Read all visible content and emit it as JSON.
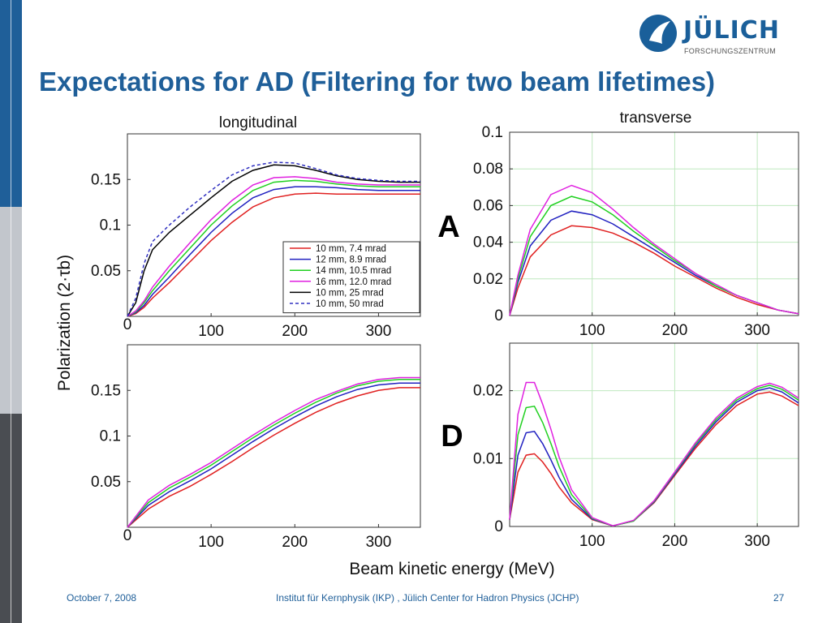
{
  "slide": {
    "title": "Expectations for AD (Filtering for two beam lifetimes)",
    "logo_word": "JÜLICH",
    "logo_sub": "FORSCHUNGSZENTRUM",
    "footer_date": "October 7, 2008",
    "footer_institute": "Institut für Kernphysik (IKP) , Jülich Center for Hadron Physics (JCHP)",
    "page_number": "27",
    "colors": {
      "title": "#1f5f99",
      "brand": "#1a5f9a",
      "grid": "#bfe8bf"
    }
  },
  "labels": {
    "col_longitudinal": "longitudinal",
    "col_transverse": "transverse",
    "row_A": "A",
    "row_D": "D",
    "ylabel_shared": "Polarization (2·τb)",
    "xlabel_shared": "Beam kinetic energy (MeV)"
  },
  "chart_data": [
    {
      "id": "A-longitudinal",
      "type": "line",
      "ylim": [
        0,
        0.2
      ],
      "xlim": [
        0,
        350
      ],
      "xticks": [
        100,
        200,
        300
      ],
      "yticks": [
        0.05,
        0.1,
        0.15
      ],
      "origin_label": "0",
      "grid": false,
      "legend_position": "bottom-right",
      "x": [
        0,
        10,
        20,
        30,
        50,
        75,
        100,
        125,
        150,
        175,
        200,
        225,
        250,
        275,
        300,
        325,
        350
      ],
      "series": [
        {
          "name": "10 mm, 7.4 mrad",
          "color": "#e02020",
          "values": [
            0,
            0.003,
            0.01,
            0.02,
            0.037,
            0.06,
            0.083,
            0.103,
            0.12,
            0.13,
            0.134,
            0.135,
            0.134,
            0.134,
            0.134,
            0.134,
            0.134
          ]
        },
        {
          "name": "12 mm, 8.9 mrad",
          "color": "#2020c0",
          "values": [
            0,
            0.004,
            0.012,
            0.024,
            0.043,
            0.068,
            0.092,
            0.113,
            0.13,
            0.139,
            0.142,
            0.142,
            0.141,
            0.139,
            0.138,
            0.138,
            0.138
          ]
        },
        {
          "name": "14 mm, 10.5 mrad",
          "color": "#20d020",
          "values": [
            0,
            0.005,
            0.015,
            0.028,
            0.05,
            0.075,
            0.1,
            0.121,
            0.138,
            0.147,
            0.149,
            0.148,
            0.145,
            0.143,
            0.142,
            0.142,
            0.142
          ]
        },
        {
          "name": "16 mm, 12.0 mrad",
          "color": "#e020e0",
          "values": [
            0,
            0.006,
            0.017,
            0.032,
            0.055,
            0.081,
            0.106,
            0.127,
            0.144,
            0.152,
            0.153,
            0.151,
            0.147,
            0.145,
            0.144,
            0.144,
            0.144
          ]
        },
        {
          "name": "10 mm, 25 mrad",
          "color": "#000000",
          "values": [
            0,
            0.015,
            0.05,
            0.073,
            0.092,
            0.111,
            0.13,
            0.148,
            0.16,
            0.166,
            0.165,
            0.16,
            0.154,
            0.15,
            0.148,
            0.147,
            0.147
          ]
        },
        {
          "name": "10 mm, 50 mrad",
          "color": "#3030c0",
          "dash": true,
          "values": [
            0,
            0.02,
            0.058,
            0.082,
            0.1,
            0.12,
            0.138,
            0.155,
            0.165,
            0.169,
            0.168,
            0.162,
            0.155,
            0.151,
            0.149,
            0.148,
            0.148
          ]
        }
      ]
    },
    {
      "id": "A-transverse",
      "type": "line",
      "ylim": [
        0,
        0.1
      ],
      "xlim": [
        0,
        350
      ],
      "xticks": [
        100,
        200,
        300
      ],
      "yticks": [
        0,
        0.02,
        0.04,
        0.06,
        0.08,
        0.1
      ],
      "grid": true,
      "x": [
        0,
        10,
        25,
        50,
        75,
        100,
        125,
        150,
        175,
        200,
        225,
        250,
        275,
        300,
        325,
        350
      ],
      "series": [
        {
          "name": "10 mm, 7.4 mrad",
          "color": "#e02020",
          "values": [
            0,
            0.015,
            0.032,
            0.044,
            0.049,
            0.048,
            0.045,
            0.04,
            0.034,
            0.027,
            0.021,
            0.015,
            0.01,
            0.006,
            0.003,
            0.001
          ]
        },
        {
          "name": "12 mm, 8.9 mrad",
          "color": "#2020c0",
          "values": [
            0,
            0.018,
            0.038,
            0.052,
            0.057,
            0.055,
            0.05,
            0.043,
            0.036,
            0.029,
            0.022,
            0.016,
            0.011,
            0.007,
            0.003,
            0.001
          ]
        },
        {
          "name": "14 mm, 10.5 mrad",
          "color": "#20d020",
          "values": [
            0,
            0.02,
            0.043,
            0.06,
            0.065,
            0.062,
            0.055,
            0.046,
            0.038,
            0.03,
            0.023,
            0.016,
            0.011,
            0.007,
            0.003,
            0.001
          ]
        },
        {
          "name": "16 mm, 12.0 mrad",
          "color": "#e020e0",
          "values": [
            0,
            0.022,
            0.047,
            0.066,
            0.071,
            0.067,
            0.058,
            0.048,
            0.039,
            0.031,
            0.023,
            0.017,
            0.011,
            0.007,
            0.003,
            0.001
          ]
        }
      ]
    },
    {
      "id": "D-longitudinal",
      "type": "line",
      "ylim": [
        0,
        0.2
      ],
      "xlim": [
        0,
        350
      ],
      "xticks": [
        100,
        200,
        300
      ],
      "yticks": [
        0.05,
        0.1,
        0.15
      ],
      "origin_label": "0",
      "grid": false,
      "x": [
        0,
        25,
        50,
        75,
        100,
        125,
        150,
        175,
        200,
        225,
        250,
        275,
        300,
        325,
        350
      ],
      "series": [
        {
          "name": "10 mm, 7.4 mrad",
          "color": "#e02020",
          "values": [
            0,
            0.02,
            0.034,
            0.045,
            0.058,
            0.072,
            0.087,
            0.101,
            0.114,
            0.126,
            0.136,
            0.144,
            0.15,
            0.153,
            0.153
          ]
        },
        {
          "name": "12 mm, 8.9 mrad",
          "color": "#2020c0",
          "values": [
            0,
            0.024,
            0.039,
            0.051,
            0.064,
            0.079,
            0.094,
            0.108,
            0.121,
            0.133,
            0.143,
            0.151,
            0.156,
            0.158,
            0.158
          ]
        },
        {
          "name": "14 mm, 10.5 mrad",
          "color": "#20d020",
          "values": [
            0,
            0.027,
            0.043,
            0.055,
            0.068,
            0.083,
            0.098,
            0.112,
            0.125,
            0.137,
            0.147,
            0.155,
            0.16,
            0.162,
            0.162
          ]
        },
        {
          "name": "16 mm, 12.0 mrad",
          "color": "#e020e0",
          "values": [
            0,
            0.03,
            0.046,
            0.058,
            0.071,
            0.086,
            0.101,
            0.115,
            0.128,
            0.14,
            0.149,
            0.157,
            0.162,
            0.164,
            0.164
          ]
        }
      ]
    },
    {
      "id": "D-transverse",
      "type": "line",
      "ylim": [
        0,
        0.027
      ],
      "xlim": [
        0,
        350
      ],
      "xticks": [
        100,
        200,
        300
      ],
      "yticks": [
        0,
        0.01,
        0.02
      ],
      "grid": true,
      "x": [
        0,
        10,
        20,
        30,
        40,
        50,
        60,
        75,
        100,
        125,
        150,
        175,
        200,
        225,
        250,
        275,
        300,
        315,
        330,
        350
      ],
      "series": [
        {
          "name": "10 mm, 7.4 mrad",
          "color": "#e02020",
          "values": [
            0.001,
            0.008,
            0.0105,
            0.0107,
            0.0095,
            0.0078,
            0.0058,
            0.0035,
            0.001,
            0.0001,
            0.0008,
            0.0035,
            0.0075,
            0.0115,
            0.015,
            0.0178,
            0.0195,
            0.0198,
            0.0192,
            0.0178
          ]
        },
        {
          "name": "12 mm, 8.9 mrad",
          "color": "#2020c0",
          "values": [
            0.001,
            0.0105,
            0.0138,
            0.014,
            0.0122,
            0.0098,
            0.0072,
            0.004,
            0.0011,
            0.0001,
            0.0008,
            0.0036,
            0.0077,
            0.0118,
            0.0154,
            0.0183,
            0.02,
            0.0204,
            0.0198,
            0.0182
          ]
        },
        {
          "name": "14 mm, 10.5 mrad",
          "color": "#20d020",
          "values": [
            0.001,
            0.0135,
            0.0175,
            0.0177,
            0.0153,
            0.0122,
            0.0088,
            0.0047,
            0.0012,
            0.0001,
            0.0008,
            0.0037,
            0.0079,
            0.0121,
            0.0157,
            0.0186,
            0.0203,
            0.0208,
            0.0202,
            0.0186
          ]
        },
        {
          "name": "16 mm, 12.0 mrad",
          "color": "#e020e0",
          "values": [
            0.001,
            0.0165,
            0.0212,
            0.0212,
            0.018,
            0.0143,
            0.0102,
            0.0054,
            0.0013,
            0.0001,
            0.0009,
            0.0038,
            0.008,
            0.0123,
            0.016,
            0.0189,
            0.0206,
            0.0211,
            0.0205,
            0.0189
          ]
        }
      ]
    }
  ]
}
